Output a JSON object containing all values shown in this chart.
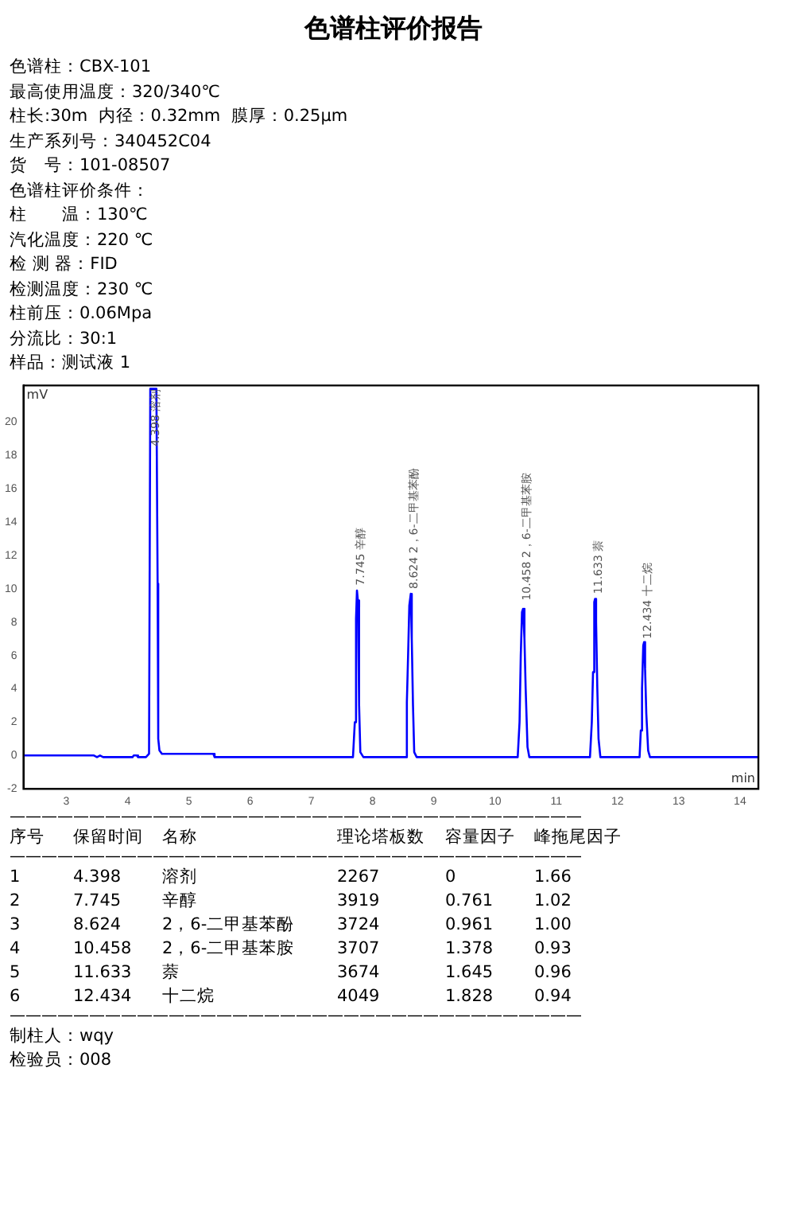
{
  "chart_data": {
    "type": "line",
    "title": "色谱柱评价报告",
    "xlabel": "min",
    "ylabel": "mV",
    "xlim": [
      2.3,
      14.3
    ],
    "xticks": [
      3,
      4,
      5,
      6,
      7,
      8,
      9,
      10,
      11,
      12,
      13,
      14
    ],
    "ylim": [
      -2,
      22.2
    ],
    "yticks": [
      -2,
      0,
      2,
      4,
      6,
      8,
      10,
      12,
      14,
      16,
      18,
      20
    ],
    "grid": false,
    "legend": false,
    "marker": "none",
    "line_style": "solid",
    "series": [
      {
        "color": "#0000ff",
        "x": [
          2.3,
          3.45,
          3.5,
          3.55,
          3.6,
          4.08,
          4.1,
          4.15,
          4.17,
          4.3,
          4.35,
          4.37,
          4.47,
          4.49,
          4.5,
          4.52,
          4.56,
          5.4,
          5.42,
          7.68,
          7.71,
          7.73,
          7.745,
          7.76,
          7.78,
          7.8,
          7.85,
          8.54,
          8.56,
          8.58,
          8.6,
          8.624,
          8.64,
          8.66,
          8.68,
          8.72,
          10.37,
          10.4,
          10.42,
          10.44,
          10.458,
          10.48,
          10.5,
          10.53,
          10.56,
          11.55,
          11.58,
          11.6,
          11.62,
          11.633,
          11.65,
          11.67,
          11.69,
          11.72,
          12.36,
          12.38,
          12.4,
          12.42,
          12.434,
          12.45,
          12.47,
          12.5,
          12.53,
          14.3
        ],
        "values": [
          0,
          0,
          -0.1,
          0,
          -0.1,
          -0.1,
          0,
          0,
          -0.1,
          -0.1,
          0.1,
          22,
          22,
          10.3,
          1,
          0.3,
          0.1,
          0.1,
          -0.1,
          -0.1,
          2,
          8.2,
          9.9,
          9.3,
          3,
          0.2,
          -0.1,
          -0.1,
          3.2,
          6,
          9,
          9.7,
          7,
          3,
          0.2,
          -0.1,
          -0.1,
          2,
          6,
          8.6,
          8.8,
          7,
          4,
          0.5,
          -0.1,
          -0.1,
          2,
          5,
          9.2,
          9.4,
          8,
          4,
          1,
          -0.1,
          -0.1,
          1.5,
          4,
          6.6,
          6.8,
          5.2,
          2.5,
          0.3,
          -0.1,
          -0.1
        ]
      }
    ],
    "annotations": [
      "色谱柱：CBX-101",
      "最高使用温度：320/340℃",
      "柱长:30m  内径：0.32mm  膜厚：0.25μm",
      "生产系列号：340452C04",
      "货　号：101-08507",
      "色谱柱评价条件：",
      "柱　　温：130℃",
      "汽化温度：220 ℃",
      "检 测 器：FID",
      "检测温度：230 ℃",
      "柱前压：0.06Mpa",
      "分流比：30:1",
      "样品：测试液 1",
      {
        "text": "4.398 溶剂",
        "x": 4.398,
        "y": 22
      },
      {
        "text": "7.745 辛醇",
        "x": 7.745,
        "y": 10.2
      },
      {
        "text": "8.624 2，6-二甲基苯酚",
        "x": 8.624,
        "y": 10.0
      },
      {
        "text": "10.458 2，6-二甲基苯胺",
        "x": 10.458,
        "y": 9.3
      },
      {
        "text": "11.633 萘",
        "x": 11.633,
        "y": 9.7
      },
      {
        "text": "12.434 十二烷",
        "x": 12.434,
        "y": 7.0
      },
      "————————————————————————————————————",
      "序号\t保留时间\t名称\t理论塔板数\t容量因子\t峰拖尾因子",
      "————————————————————————————————————",
      "1\t4.398\t溶剂\t2267\t0\t1.66",
      "2\t7.745\t辛醇\t3919\t0.761\t1.02",
      "3\t8.624\t2，6-二甲基苯酚\t3724\t0.961\t1.00",
      "4\t10.458\t2，6-二甲基苯胺\t3707\t1.378\t0.93",
      "5\t11.633\t萘\t3674\t1.645\t0.96",
      "6\t12.434\t十二烷\t4049\t1.828\t0.94",
      "————————————————————————————————————",
      "制柱人：wqy",
      "检验员：008"
    ]
  }
}
